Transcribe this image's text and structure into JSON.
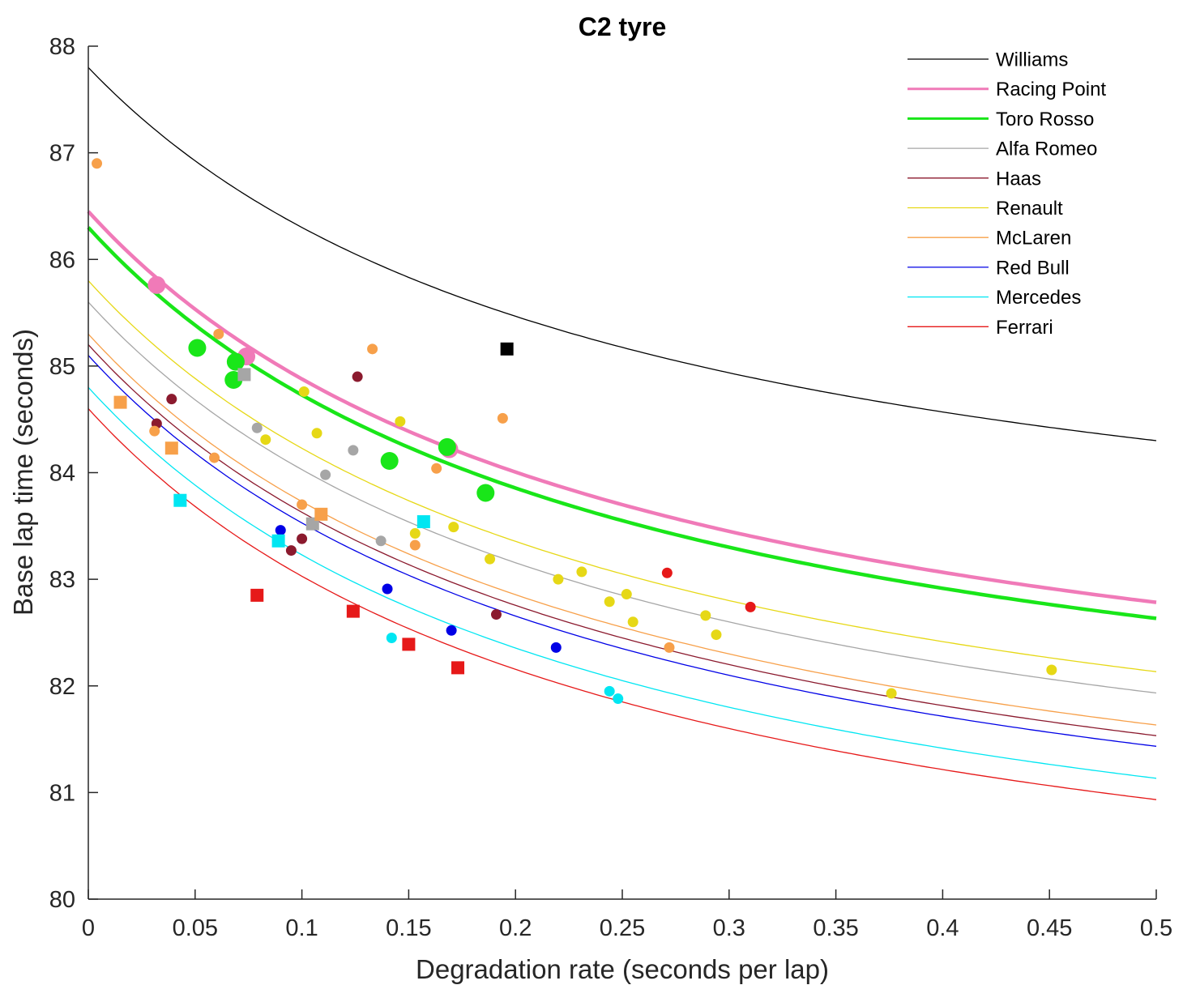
{
  "chart_data": {
    "type": "scatter",
    "title": "C2 tyre",
    "xlabel": "Degradation rate (seconds per lap)",
    "ylabel": "Base lap time (seconds)",
    "xlim": [
      0,
      0.5
    ],
    "ylim": [
      80,
      88
    ],
    "xticks": [
      0,
      0.05,
      0.1,
      0.15,
      0.2,
      0.25,
      0.3,
      0.35,
      0.4,
      0.45,
      0.5
    ],
    "xtick_labels": [
      "0",
      "0.05",
      "0.1",
      "0.15",
      "0.2",
      "0.25",
      "0.3",
      "0.35",
      "0.4",
      "0.45",
      "0.5"
    ],
    "yticks": [
      80,
      81,
      82,
      83,
      84,
      85,
      86,
      87,
      88
    ],
    "ytick_labels": [
      "80",
      "81",
      "82",
      "83",
      "84",
      "85",
      "86",
      "87",
      "88"
    ],
    "legend_position": "top-right",
    "series": [
      {
        "name": "Williams",
        "color": "#000000",
        "line_width": 1.3,
        "curve": {
          "a": 87.8,
          "k": 4,
          "asym": 82.55
        },
        "points": [
          {
            "x": 0.196,
            "y": 85.16,
            "marker": "square",
            "size": "medium"
          }
        ]
      },
      {
        "name": "Racing Point",
        "color": "#f07ab8",
        "line_width": 4.5,
        "curve": {
          "a": 86.45,
          "k": 4,
          "asym": 80.95
        },
        "points": [
          {
            "x": 0.032,
            "y": 85.76,
            "marker": "circle",
            "size": "large"
          },
          {
            "x": 0.074,
            "y": 85.09,
            "marker": "circle",
            "size": "large"
          },
          {
            "x": 0.169,
            "y": 84.22,
            "marker": "circle",
            "size": "large"
          }
        ]
      },
      {
        "name": "Toro Rosso",
        "color": "#19e619",
        "line_width": 4.5,
        "curve": {
          "a": 86.3,
          "k": 4,
          "asym": 80.8
        },
        "points": [
          {
            "x": 0.051,
            "y": 85.17,
            "marker": "circle",
            "size": "large"
          },
          {
            "x": 0.068,
            "y": 84.87,
            "marker": "circle",
            "size": "large"
          },
          {
            "x": 0.069,
            "y": 85.04,
            "marker": "circle",
            "size": "large"
          },
          {
            "x": 0.141,
            "y": 84.11,
            "marker": "circle",
            "size": "large"
          },
          {
            "x": 0.168,
            "y": 84.24,
            "marker": "circle",
            "size": "large"
          },
          {
            "x": 0.186,
            "y": 83.81,
            "marker": "circle",
            "size": "large"
          }
        ]
      },
      {
        "name": "Alfa Romeo",
        "color": "#a6a6a6",
        "line_width": 1.3,
        "curve": {
          "a": 85.6,
          "k": 4,
          "asym": 80.1
        },
        "points": [
          {
            "x": 0.073,
            "y": 84.92,
            "marker": "square",
            "size": "medium"
          },
          {
            "x": 0.079,
            "y": 84.42,
            "marker": "circle",
            "size": "small"
          },
          {
            "x": 0.105,
            "y": 83.52,
            "marker": "square",
            "size": "medium"
          },
          {
            "x": 0.111,
            "y": 83.98,
            "marker": "circle",
            "size": "small"
          },
          {
            "x": 0.124,
            "y": 84.21,
            "marker": "circle",
            "size": "small"
          },
          {
            "x": 0.137,
            "y": 83.36,
            "marker": "circle",
            "size": "small"
          }
        ]
      },
      {
        "name": "Haas",
        "color": "#8b1a2e",
        "line_width": 1.3,
        "curve": {
          "a": 85.2,
          "k": 4,
          "asym": 79.7
        },
        "points": [
          {
            "x": 0.032,
            "y": 84.46,
            "marker": "circle",
            "size": "small"
          },
          {
            "x": 0.039,
            "y": 84.69,
            "marker": "circle",
            "size": "small"
          },
          {
            "x": 0.095,
            "y": 83.27,
            "marker": "circle",
            "size": "small"
          },
          {
            "x": 0.1,
            "y": 83.38,
            "marker": "circle",
            "size": "small"
          },
          {
            "x": 0.126,
            "y": 84.9,
            "marker": "circle",
            "size": "small"
          },
          {
            "x": 0.191,
            "y": 82.67,
            "marker": "circle",
            "size": "small"
          }
        ]
      },
      {
        "name": "Renault",
        "color": "#e6d816",
        "line_width": 1.3,
        "curve": {
          "a": 85.8,
          "k": 4,
          "asym": 80.3
        },
        "points": [
          {
            "x": 0.083,
            "y": 84.31,
            "marker": "circle",
            "size": "small"
          },
          {
            "x": 0.101,
            "y": 84.76,
            "marker": "circle",
            "size": "small"
          },
          {
            "x": 0.107,
            "y": 84.37,
            "marker": "circle",
            "size": "small"
          },
          {
            "x": 0.146,
            "y": 84.48,
            "marker": "circle",
            "size": "small"
          },
          {
            "x": 0.153,
            "y": 83.43,
            "marker": "circle",
            "size": "small"
          },
          {
            "x": 0.171,
            "y": 83.49,
            "marker": "circle",
            "size": "small"
          },
          {
            "x": 0.188,
            "y": 83.19,
            "marker": "circle",
            "size": "small"
          },
          {
            "x": 0.22,
            "y": 83.0,
            "marker": "circle",
            "size": "small"
          },
          {
            "x": 0.231,
            "y": 83.07,
            "marker": "circle",
            "size": "small"
          },
          {
            "x": 0.244,
            "y": 82.79,
            "marker": "circle",
            "size": "small"
          },
          {
            "x": 0.252,
            "y": 82.86,
            "marker": "circle",
            "size": "small"
          },
          {
            "x": 0.255,
            "y": 82.6,
            "marker": "circle",
            "size": "small"
          },
          {
            "x": 0.289,
            "y": 82.66,
            "marker": "circle",
            "size": "small"
          },
          {
            "x": 0.294,
            "y": 82.48,
            "marker": "circle",
            "size": "small"
          },
          {
            "x": 0.376,
            "y": 81.93,
            "marker": "circle",
            "size": "small"
          },
          {
            "x": 0.451,
            "y": 82.15,
            "marker": "circle",
            "size": "small"
          }
        ]
      },
      {
        "name": "McLaren",
        "color": "#f7a04a",
        "line_width": 1.3,
        "curve": {
          "a": 85.3,
          "k": 4,
          "asym": 79.8
        },
        "points": [
          {
            "x": 0.004,
            "y": 86.9,
            "marker": "circle",
            "size": "small"
          },
          {
            "x": 0.015,
            "y": 84.66,
            "marker": "square",
            "size": "medium"
          },
          {
            "x": 0.031,
            "y": 84.39,
            "marker": "circle",
            "size": "small"
          },
          {
            "x": 0.039,
            "y": 84.23,
            "marker": "square",
            "size": "medium"
          },
          {
            "x": 0.059,
            "y": 84.14,
            "marker": "circle",
            "size": "small"
          },
          {
            "x": 0.061,
            "y": 85.3,
            "marker": "circle",
            "size": "small"
          },
          {
            "x": 0.1,
            "y": 83.7,
            "marker": "circle",
            "size": "small"
          },
          {
            "x": 0.109,
            "y": 83.61,
            "marker": "square",
            "size": "medium"
          },
          {
            "x": 0.133,
            "y": 85.16,
            "marker": "circle",
            "size": "small"
          },
          {
            "x": 0.153,
            "y": 83.32,
            "marker": "circle",
            "size": "small"
          },
          {
            "x": 0.163,
            "y": 84.04,
            "marker": "circle",
            "size": "small"
          },
          {
            "x": 0.194,
            "y": 84.51,
            "marker": "circle",
            "size": "small"
          },
          {
            "x": 0.272,
            "y": 82.36,
            "marker": "circle",
            "size": "small"
          }
        ]
      },
      {
        "name": "Red Bull",
        "color": "#0000e6",
        "line_width": 1.3,
        "curve": {
          "a": 85.1,
          "k": 4,
          "asym": 79.6
        },
        "points": [
          {
            "x": 0.09,
            "y": 83.46,
            "marker": "circle",
            "size": "small"
          },
          {
            "x": 0.14,
            "y": 82.91,
            "marker": "circle",
            "size": "small"
          },
          {
            "x": 0.17,
            "y": 82.52,
            "marker": "circle",
            "size": "small"
          },
          {
            "x": 0.219,
            "y": 82.36,
            "marker": "circle",
            "size": "small"
          }
        ]
      },
      {
        "name": "Mercedes",
        "color": "#00e6f2",
        "line_width": 1.3,
        "curve": {
          "a": 84.8,
          "k": 4,
          "asym": 79.3
        },
        "points": [
          {
            "x": 0.043,
            "y": 83.74,
            "marker": "square",
            "size": "medium"
          },
          {
            "x": 0.089,
            "y": 83.36,
            "marker": "square",
            "size": "medium"
          },
          {
            "x": 0.142,
            "y": 82.45,
            "marker": "circle",
            "size": "small"
          },
          {
            "x": 0.157,
            "y": 83.54,
            "marker": "square",
            "size": "medium"
          },
          {
            "x": 0.244,
            "y": 81.95,
            "marker": "circle",
            "size": "small"
          },
          {
            "x": 0.248,
            "y": 81.88,
            "marker": "circle",
            "size": "small"
          }
        ]
      },
      {
        "name": "Ferrari",
        "color": "#e61919",
        "line_width": 1.3,
        "curve": {
          "a": 84.6,
          "k": 4,
          "asym": 79.1
        },
        "points": [
          {
            "x": 0.079,
            "y": 82.85,
            "marker": "square",
            "size": "medium"
          },
          {
            "x": 0.124,
            "y": 82.7,
            "marker": "square",
            "size": "medium"
          },
          {
            "x": 0.15,
            "y": 82.39,
            "marker": "square",
            "size": "medium"
          },
          {
            "x": 0.173,
            "y": 82.17,
            "marker": "square",
            "size": "medium"
          },
          {
            "x": 0.271,
            "y": 83.06,
            "marker": "circle",
            "size": "small"
          },
          {
            "x": 0.31,
            "y": 82.74,
            "marker": "circle",
            "size": "small"
          }
        ]
      }
    ]
  }
}
